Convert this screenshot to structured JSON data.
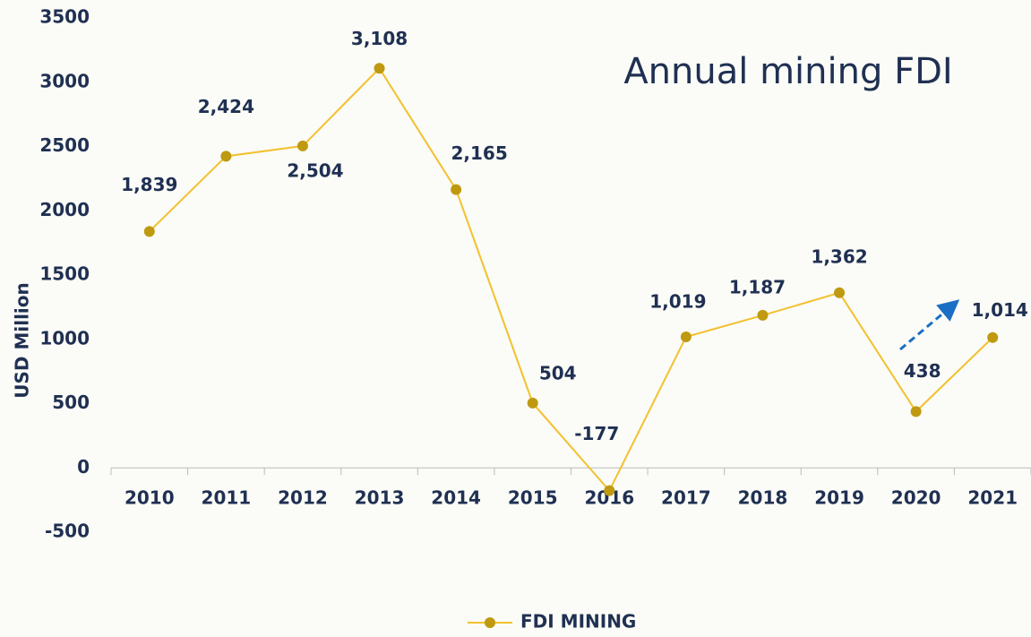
{
  "chart_data": {
    "type": "line",
    "title": "Annual mining FDI",
    "ylabel": "USD Million",
    "categories": [
      "2010",
      "2011",
      "2012",
      "2013",
      "2014",
      "2015",
      "2016",
      "2017",
      "2018",
      "2019",
      "2020",
      "2021"
    ],
    "series": [
      {
        "name": "FDI MINING",
        "color": "#f2c12e",
        "marker_color": "#bf9a10",
        "values": [
          1839,
          2424,
          2504,
          3108,
          2165,
          504,
          -177,
          1019,
          1187,
          1362,
          438,
          1014
        ],
        "value_labels": [
          "1,839",
          "2,424",
          "2,504",
          "3,108",
          "2,165",
          "504",
          "-177",
          "1,019",
          "1,187",
          "1,362",
          "438",
          "1,014"
        ]
      }
    ],
    "ylim": [
      -500,
      3500
    ],
    "yticks": [
      -500,
      0,
      500,
      1000,
      1500,
      2000,
      2500,
      3000,
      3500
    ],
    "grid": false,
    "legend": "bottom"
  }
}
